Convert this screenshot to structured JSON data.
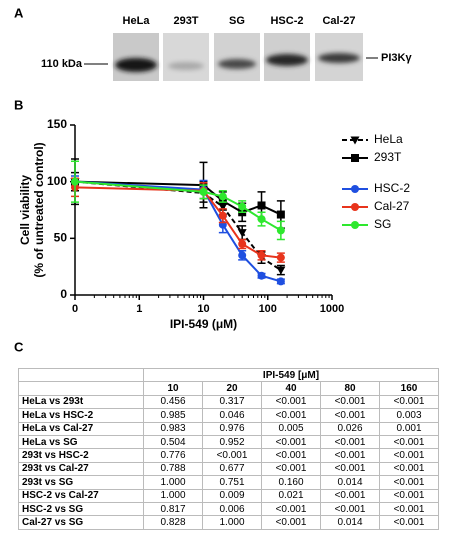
{
  "panel_a": {
    "label": "A",
    "lanes": [
      "HeLa",
      "293T",
      "SG",
      "HSC-2",
      "Cal-27"
    ],
    "marker": "110 kDa",
    "protein": "PI3Kγ"
  },
  "panel_b_label": "B",
  "chart_data": {
    "type": "line",
    "xlabel": "IPI-549 (μM)",
    "ylabel": [
      "Cell viability",
      "(% of untreated control)"
    ],
    "x": [
      0.1,
      10,
      20,
      40,
      80,
      160
    ],
    "xscale": "log",
    "xlim": [
      0.1,
      1000
    ],
    "xticks": [
      {
        "value": 0.1,
        "label": "0"
      },
      1,
      10,
      100,
      1000
    ],
    "ylim": [
      0,
      150
    ],
    "yticks": [
      0,
      50,
      100,
      150
    ],
    "series": [
      {
        "name": "HeLa",
        "color": "#000000",
        "marker": "triangle-down",
        "linestyle": "dashed",
        "values": [
          100,
          90,
          78,
          55,
          33,
          22
        ],
        "errors": [
          8,
          8,
          7,
          6,
          5,
          4
        ]
      },
      {
        "name": "293T",
        "color": "#000000",
        "marker": "square",
        "linestyle": "solid",
        "values": [
          100,
          97,
          83,
          73,
          79,
          71
        ],
        "errors": [
          20,
          20,
          8,
          8,
          12,
          12
        ]
      },
      {
        "name": "HSC-2",
        "color": "#1f4fe0",
        "marker": "circle",
        "linestyle": "solid",
        "values": [
          100,
          93,
          62,
          35,
          17,
          12
        ],
        "errors": [
          5,
          8,
          7,
          4,
          2,
          2
        ]
      },
      {
        "name": "Cal-27",
        "color": "#e8341c",
        "marker": "circle",
        "linestyle": "solid",
        "values": [
          95,
          92,
          70,
          45,
          35,
          33
        ],
        "errors": [
          8,
          7,
          6,
          4,
          4,
          4
        ]
      },
      {
        "name": "SG",
        "color": "#2ee82e",
        "marker": "circle",
        "linestyle": "solid",
        "values": [
          100,
          91,
          87,
          78,
          67,
          57
        ],
        "errors": [
          18,
          6,
          5,
          5,
          6,
          8
        ]
      }
    ]
  },
  "panel_c_label": "C",
  "table": {
    "header": "IPI-549 [μM]",
    "columns": [
      "10",
      "20",
      "40",
      "80",
      "160"
    ],
    "rows": [
      [
        "HeLa vs 293t",
        "0.456",
        "0.317",
        "<0.001",
        "<0.001",
        "<0.001"
      ],
      [
        "HeLa vs HSC-2",
        "0.985",
        "0.046",
        "<0.001",
        "<0.001",
        "0.003"
      ],
      [
        "HeLa vs Cal-27",
        "0.983",
        "0.976",
        "0.005",
        "0.026",
        "0.001"
      ],
      [
        "HeLa vs SG",
        "0.504",
        "0.952",
        "<0.001",
        "<0.001",
        "<0.001"
      ],
      [
        "293t vs HSC-2",
        "0.776",
        "<0.001",
        "<0.001",
        "<0.001",
        "<0.001"
      ],
      [
        "293t vs Cal-27",
        "0.788",
        "0.677",
        "<0.001",
        "<0.001",
        "<0.001"
      ],
      [
        "293t vs SG",
        "1.000",
        "0.751",
        "0.160",
        "0.014",
        "<0.001"
      ],
      [
        "HSC-2 vs Cal-27",
        "1.000",
        "0.009",
        "0.021",
        "<0.001",
        "<0.001"
      ],
      [
        "HSC-2 vs SG",
        "0.817",
        "0.006",
        "<0.001",
        "<0.001",
        "<0.001"
      ],
      [
        "Cal-27 vs SG",
        "0.828",
        "1.000",
        "<0.001",
        "0.014",
        "<0.001"
      ]
    ]
  }
}
